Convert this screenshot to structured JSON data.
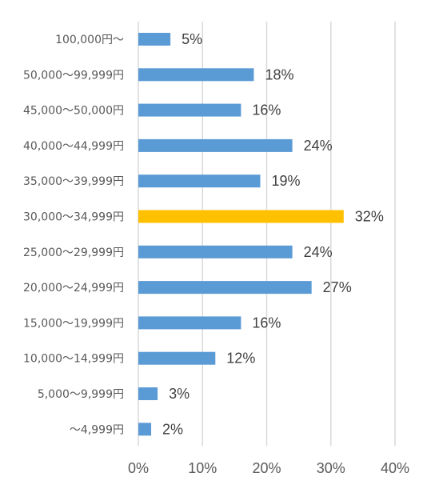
{
  "chart_data": {
    "type": "bar",
    "orientation": "horizontal",
    "categories": [
      "100,000円～",
      "50,000～99,999円",
      "45,000～50,000円",
      "40,000～44,999円",
      "35,000～39,999円",
      "30,000～34,999円",
      "25,000～29,999円",
      "20,000～24,999円",
      "15,000～19,999円",
      "10,000～14,999円",
      "5,000～9,999円",
      "～4,999円"
    ],
    "values": [
      5,
      18,
      16,
      24,
      19,
      32,
      24,
      27,
      16,
      12,
      3,
      2
    ],
    "value_labels": [
      "5%",
      "18%",
      "16%",
      "24%",
      "19%",
      "32%",
      "24%",
      "27%",
      "16%",
      "12%",
      "3%",
      "2%"
    ],
    "title": "",
    "xlabel": "",
    "ylabel": "",
    "xlim": [
      0,
      40
    ],
    "x_ticks": [
      "0%",
      "10%",
      "20%",
      "30%",
      "40%"
    ],
    "grid": "vertical",
    "legend": "none",
    "colors": {
      "bar": "#5b9bd5",
      "highlight": "#ffc000",
      "grid": "#d9d9d9"
    },
    "highlight_index": 5
  }
}
